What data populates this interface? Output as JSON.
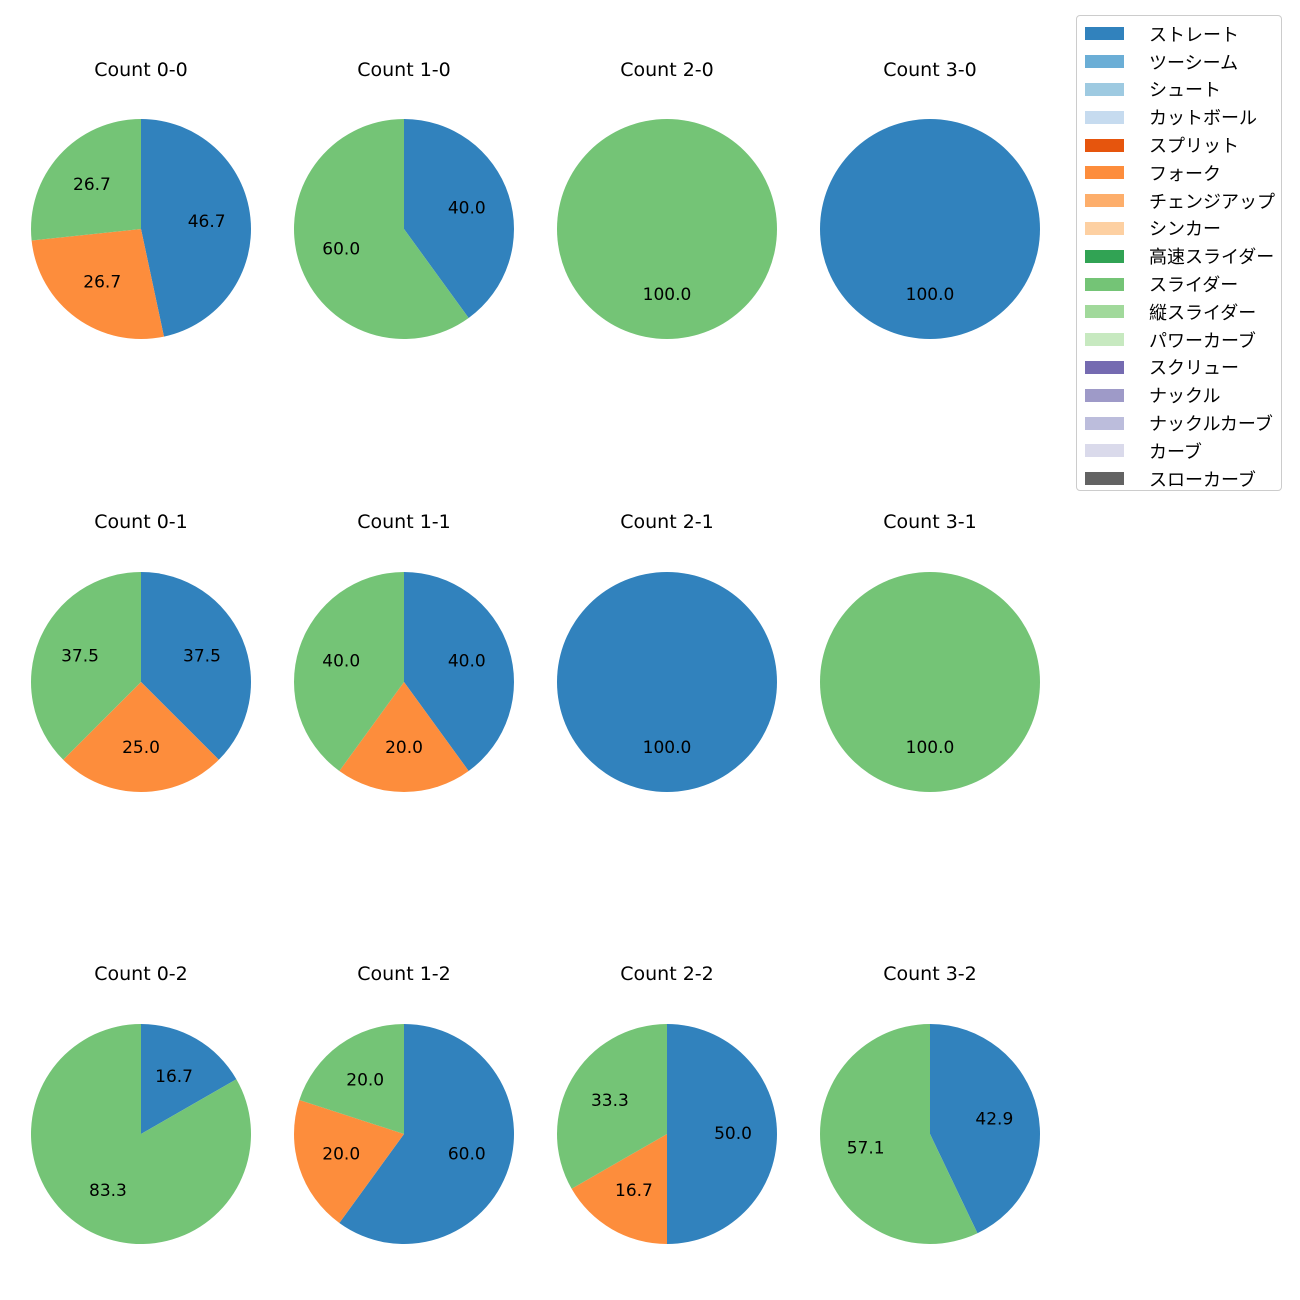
{
  "chart_data": {
    "type": "pie",
    "legend": {
      "placement": "top-right",
      "entries": [
        {
          "label": "ストレート",
          "color": "#3182bd"
        },
        {
          "label": "ツーシーム",
          "color": "#6baed6"
        },
        {
          "label": "シュート",
          "color": "#9ecae1"
        },
        {
          "label": "カットボール",
          "color": "#c6dbef"
        },
        {
          "label": "スプリット",
          "color": "#e6550d"
        },
        {
          "label": "フォーク",
          "color": "#fd8d3c"
        },
        {
          "label": "チェンジアップ",
          "color": "#fdae6b"
        },
        {
          "label": "シンカー",
          "color": "#fdd0a2"
        },
        {
          "label": "高速スライダー",
          "color": "#31a354"
        },
        {
          "label": "スライダー",
          "color": "#74c476"
        },
        {
          "label": "縦スライダー",
          "color": "#a1d99b"
        },
        {
          "label": "パワーカーブ",
          "color": "#c7e9c0"
        },
        {
          "label": "スクリュー",
          "color": "#756bb1"
        },
        {
          "label": "ナックル",
          "color": "#9e9ac8"
        },
        {
          "label": "ナックルカーブ",
          "color": "#bcbddc"
        },
        {
          "label": "カーブ",
          "color": "#dadaeb"
        },
        {
          "label": "スローカーブ",
          "color": "#636363"
        }
      ]
    },
    "start_angle_deg": 90,
    "direction": "clockwise",
    "pies": [
      {
        "title": "Count 0-0",
        "slices": [
          {
            "pitch": "ストレート",
            "value": 46.7
          },
          {
            "pitch": "フォーク",
            "value": 26.7
          },
          {
            "pitch": "スライダー",
            "value": 26.7
          }
        ]
      },
      {
        "title": "Count 1-0",
        "slices": [
          {
            "pitch": "ストレート",
            "value": 40.0
          },
          {
            "pitch": "スライダー",
            "value": 60.0
          }
        ]
      },
      {
        "title": "Count 2-0",
        "slices": [
          {
            "pitch": "スライダー",
            "value": 100.0
          }
        ]
      },
      {
        "title": "Count 3-0",
        "slices": [
          {
            "pitch": "ストレート",
            "value": 100.0
          }
        ]
      },
      {
        "title": "Count 0-1",
        "slices": [
          {
            "pitch": "ストレート",
            "value": 37.5
          },
          {
            "pitch": "フォーク",
            "value": 25.0
          },
          {
            "pitch": "スライダー",
            "value": 37.5
          }
        ]
      },
      {
        "title": "Count 1-1",
        "slices": [
          {
            "pitch": "ストレート",
            "value": 40.0
          },
          {
            "pitch": "フォーク",
            "value": 20.0
          },
          {
            "pitch": "スライダー",
            "value": 40.0
          }
        ]
      },
      {
        "title": "Count 2-1",
        "slices": [
          {
            "pitch": "ストレート",
            "value": 100.0
          }
        ]
      },
      {
        "title": "Count 3-1",
        "slices": [
          {
            "pitch": "スライダー",
            "value": 100.0
          }
        ]
      },
      {
        "title": "Count 0-2",
        "slices": [
          {
            "pitch": "ストレート",
            "value": 16.7
          },
          {
            "pitch": "スライダー",
            "value": 83.3
          }
        ]
      },
      {
        "title": "Count 1-2",
        "slices": [
          {
            "pitch": "ストレート",
            "value": 60.0
          },
          {
            "pitch": "フォーク",
            "value": 20.0
          },
          {
            "pitch": "スライダー",
            "value": 20.0
          }
        ]
      },
      {
        "title": "Count 2-2",
        "slices": [
          {
            "pitch": "ストレート",
            "value": 50.0
          },
          {
            "pitch": "フォーク",
            "value": 16.7
          },
          {
            "pitch": "スライダー",
            "value": 33.3
          }
        ]
      },
      {
        "title": "Count 3-2",
        "slices": [
          {
            "pitch": "ストレート",
            "value": 42.9
          },
          {
            "pitch": "スライダー",
            "value": 57.1
          }
        ]
      }
    ]
  }
}
